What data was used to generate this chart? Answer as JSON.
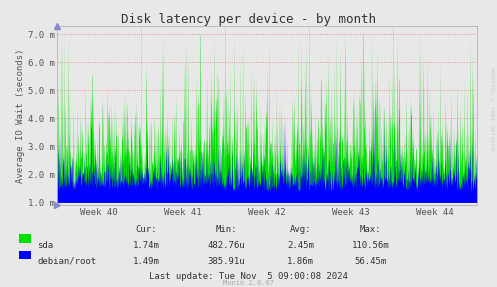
{
  "title": "Disk latency per device - by month",
  "ylabel": "Average IO Wait (seconds)",
  "background_color": "#e8e8e8",
  "plot_bg_color": "#e8e8e8",
  "ytick_labels": [
    "1.0 m",
    "2.0 m",
    "3.0 m",
    "4.0 m",
    "5.0 m",
    "6.0 m",
    "7.0 m"
  ],
  "ytick_values": [
    1.0,
    2.0,
    3.0,
    4.0,
    5.0,
    6.0,
    7.0
  ],
  "ylim": [
    0.9,
    7.3
  ],
  "xtick_labels": [
    "Week 40",
    "Week 41",
    "Week 42",
    "Week 43",
    "Week 44"
  ],
  "sda_color": "#00e000",
  "root_color": "#0000ff",
  "watermark": "RRDTOOL / TOBI OETIKER",
  "munin_version": "Munin 2.0.67",
  "legend": [
    {
      "label": "sda",
      "color": "#00e000"
    },
    {
      "label": "debian/root",
      "color": "#0000ff"
    }
  ],
  "stats": {
    "headers": [
      "Cur:",
      "Min:",
      "Avg:",
      "Max:"
    ],
    "sda": [
      "1.74m",
      "482.76u",
      "2.45m",
      "110.56m"
    ],
    "root": [
      "1.49m",
      "385.91u",
      "1.86m",
      "56.45m"
    ]
  },
  "last_update": "Last update: Tue Nov  5 09:00:08 2024",
  "n_points": 1400,
  "seed": 42
}
